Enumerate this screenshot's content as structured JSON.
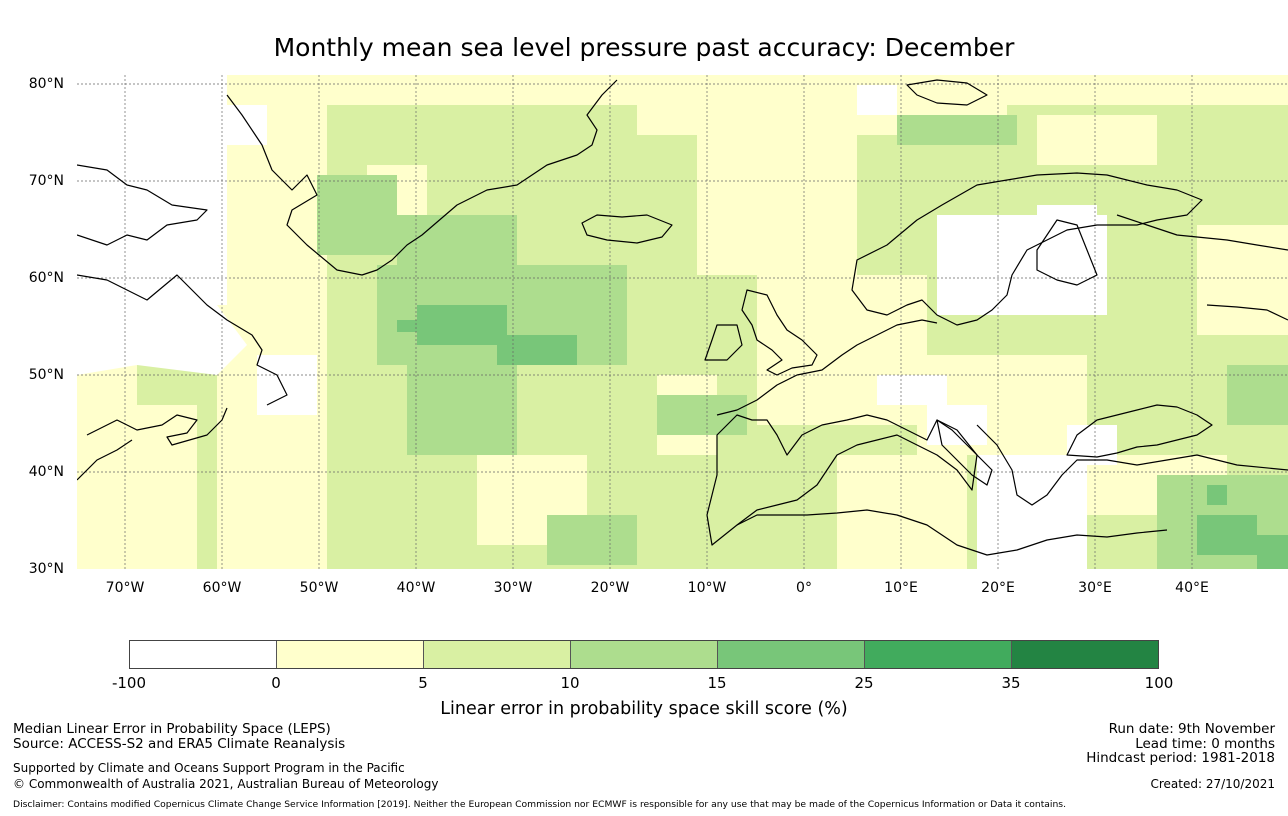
{
  "title": "Monthly mean sea level pressure past accuracy: December",
  "map": {
    "lat_labels": [
      "80°N",
      "70°N",
      "60°N",
      "50°N",
      "40°N",
      "30°N"
    ],
    "lon_labels": [
      "70°W",
      "60°W",
      "50°W",
      "40°W",
      "30°W",
      "20°W",
      "10°W",
      "0°",
      "10°E",
      "20°E",
      "30°E",
      "40°E"
    ],
    "extent": {
      "lon_min": -75,
      "lon_max": 50,
      "lat_min": 30,
      "lat_max": 81
    }
  },
  "colorbar": {
    "colors": [
      "#ffffff",
      "#ffffcc",
      "#d9f0a3",
      "#addd8e",
      "#78c679",
      "#41ab5d",
      "#238443"
    ],
    "ticks": [
      "-100",
      "0",
      "5",
      "10",
      "15",
      "25",
      "35",
      "100"
    ],
    "label": "Linear error in probability space skill score (%)"
  },
  "footer": {
    "left_line1": "Median Linear Error in Probability Space (LEPS)",
    "left_line2": "Source: ACCESS-S2 and ERA5 Climate Reanalysis",
    "left_line3": "Supported by Climate and Oceans Support Program in the Pacific",
    "left_line4": "© Commonwealth of Australia 2021, Australian Bureau of Meteorology",
    "run_date": "Run date: 9th November",
    "lead_time": "Lead time: 0 months",
    "hindcast": "Hindcast period: 1981-2018",
    "created": "Created: 27/10/2021",
    "disclaimer": "Disclaimer: Contains modified Copernicus Climate Change Service Information [2019]. Neither the European Commission nor ECMWF is responsible for any use that may be made of the Copernicus Information or Data it contains."
  }
}
